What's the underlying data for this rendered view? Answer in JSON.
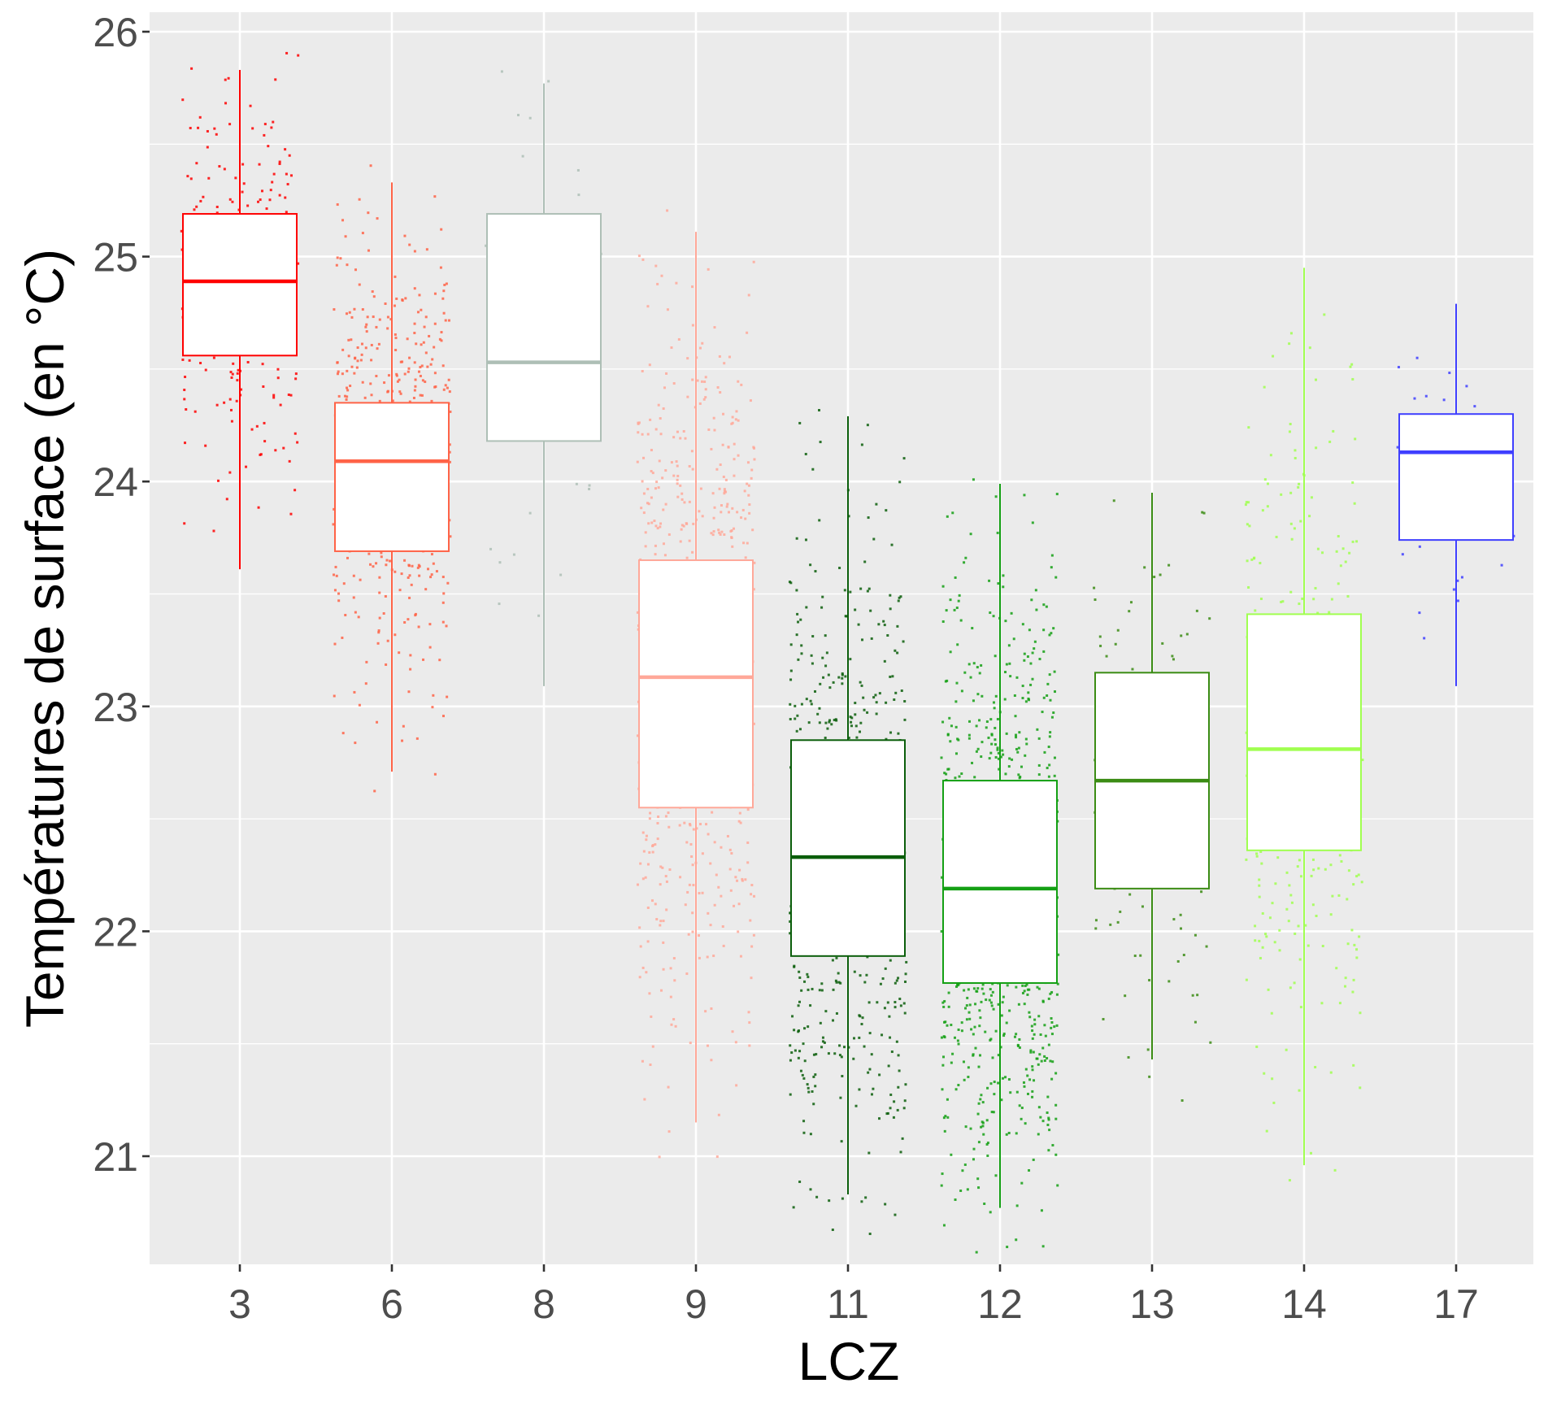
{
  "chart_data": {
    "type": "boxplot",
    "title": "",
    "xlabel": "LCZ",
    "ylabel": "Températures de surface (en °C)",
    "ylim": [
      20.53,
      26.08
    ],
    "yticks": [
      "21",
      "22",
      "23",
      "24",
      "25",
      "26"
    ],
    "ytick_values": [
      21,
      22,
      23,
      24,
      25,
      26
    ],
    "grid": true,
    "legend": "none",
    "categories": [
      "3",
      "6",
      "8",
      "9",
      "11",
      "12",
      "13",
      "14",
      "17"
    ],
    "series": [
      {
        "name": "3",
        "color": "#FF0000",
        "whisker_low": 23.61,
        "q1": 24.56,
        "median": 24.89,
        "q3": 25.19,
        "whisker_high": 25.83,
        "approx_points": 420
      },
      {
        "name": "6",
        "color": "#FF6347",
        "whisker_low": 22.71,
        "q1": 23.69,
        "median": 24.09,
        "q3": 24.35,
        "whisker_high": 25.33,
        "approx_points": 800
      },
      {
        "name": "8",
        "color": "#AEBFB6",
        "whisker_low": 23.09,
        "q1": 24.18,
        "median": 24.53,
        "q3": 25.19,
        "whisker_high": 25.77,
        "approx_points": 70
      },
      {
        "name": "9",
        "color": "#FFA899",
        "whisker_low": 21.15,
        "q1": 22.55,
        "median": 23.13,
        "q3": 23.65,
        "whisker_high": 25.11,
        "approx_points": 1100
      },
      {
        "name": "11",
        "color": "#0B5E0B",
        "whisker_low": 20.83,
        "q1": 21.89,
        "median": 22.33,
        "q3": 22.85,
        "whisker_high": 24.29,
        "approx_points": 1000
      },
      {
        "name": "12",
        "color": "#14A014",
        "whisker_low": 20.77,
        "q1": 21.77,
        "median": 22.19,
        "q3": 22.67,
        "whisker_high": 23.99,
        "approx_points": 1400
      },
      {
        "name": "13",
        "color": "#3B8C14",
        "whisker_low": 21.43,
        "q1": 22.19,
        "median": 22.67,
        "q3": 23.15,
        "whisker_high": 23.95,
        "approx_points": 160
      },
      {
        "name": "14",
        "color": "#A0FF50",
        "whisker_low": 20.96,
        "q1": 22.36,
        "median": 22.81,
        "q3": 23.41,
        "whisker_high": 24.95,
        "approx_points": 550
      },
      {
        "name": "17",
        "color": "#3F3FFF",
        "whisker_low": 23.09,
        "q1": 23.74,
        "median": 24.13,
        "q3": 24.3,
        "whisker_high": 24.79,
        "approx_points": 60
      }
    ]
  }
}
